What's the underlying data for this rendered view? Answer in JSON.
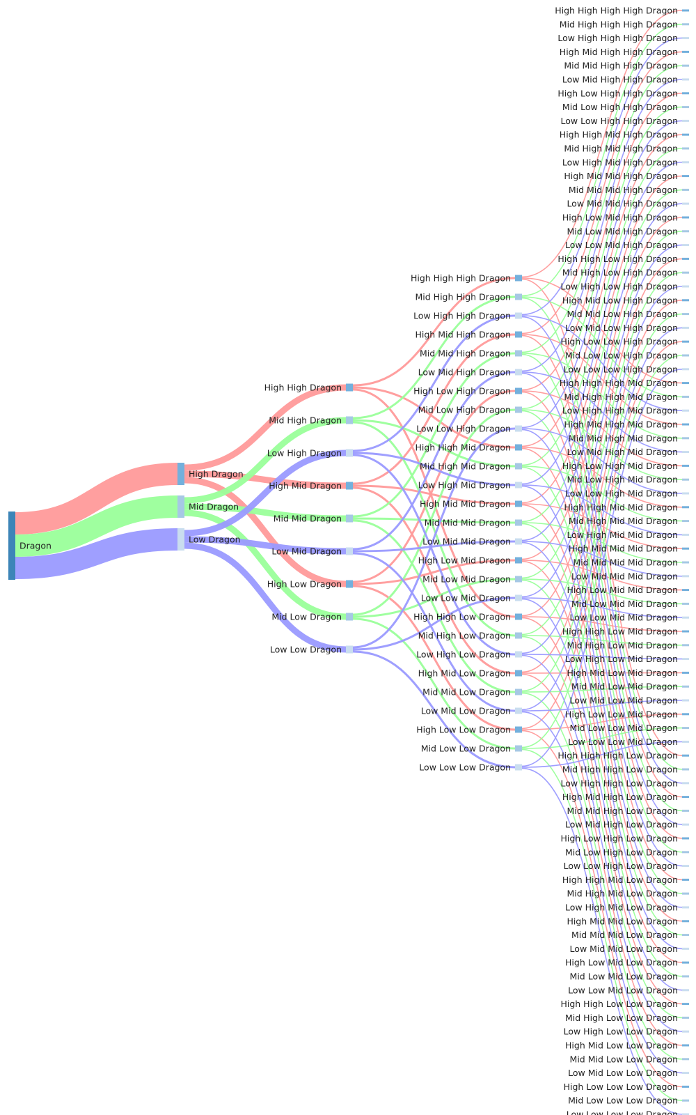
{
  "diagram": {
    "type": "sankey",
    "colors": {
      "High": "#ff9a9a",
      "Mid": "#9aff9a",
      "Low": "#9a9aff",
      "node_root": "#3d85b8",
      "node_high": "#74b0dc",
      "node_mid": "#a6c8e4",
      "node_low": "#c9ddef"
    },
    "levels": [
      "High",
      "Mid",
      "Low"
    ],
    "suffix": "Dragon",
    "root": "Dragon",
    "depth": 4
  }
}
